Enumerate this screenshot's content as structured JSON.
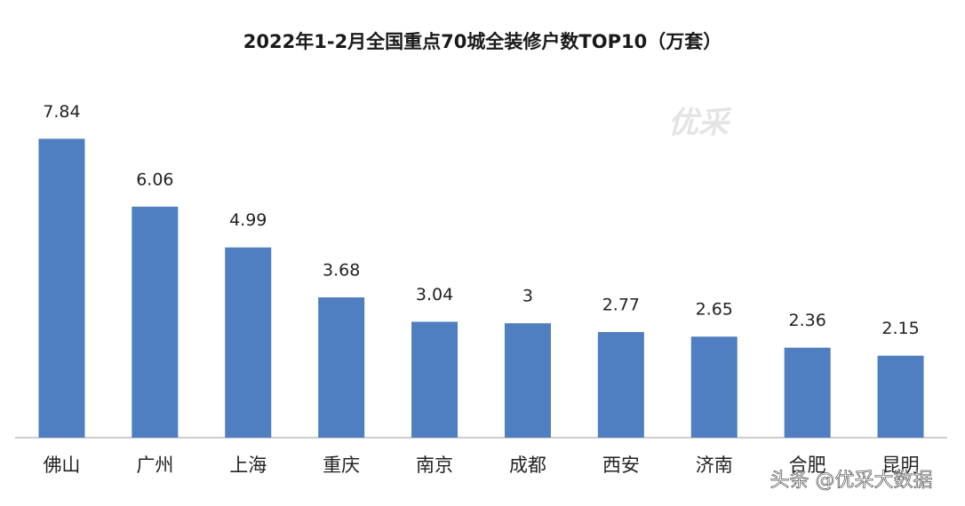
{
  "chart_data": {
    "type": "bar",
    "title": "2022年1-2月全国重点70城全装修户数TOP10（万套）",
    "categories": [
      "佛山",
      "广州",
      "上海",
      "重庆",
      "南京",
      "成都",
      "西安",
      "济南",
      "合肥",
      "昆明"
    ],
    "values": [
      7.84,
      6.06,
      4.99,
      3.68,
      3.04,
      3,
      2.77,
      2.65,
      2.36,
      2.15
    ],
    "color": "#4f7fc0",
    "ylim": [
      0,
      8.5
    ],
    "watermark": "头条 @优采大数据"
  }
}
